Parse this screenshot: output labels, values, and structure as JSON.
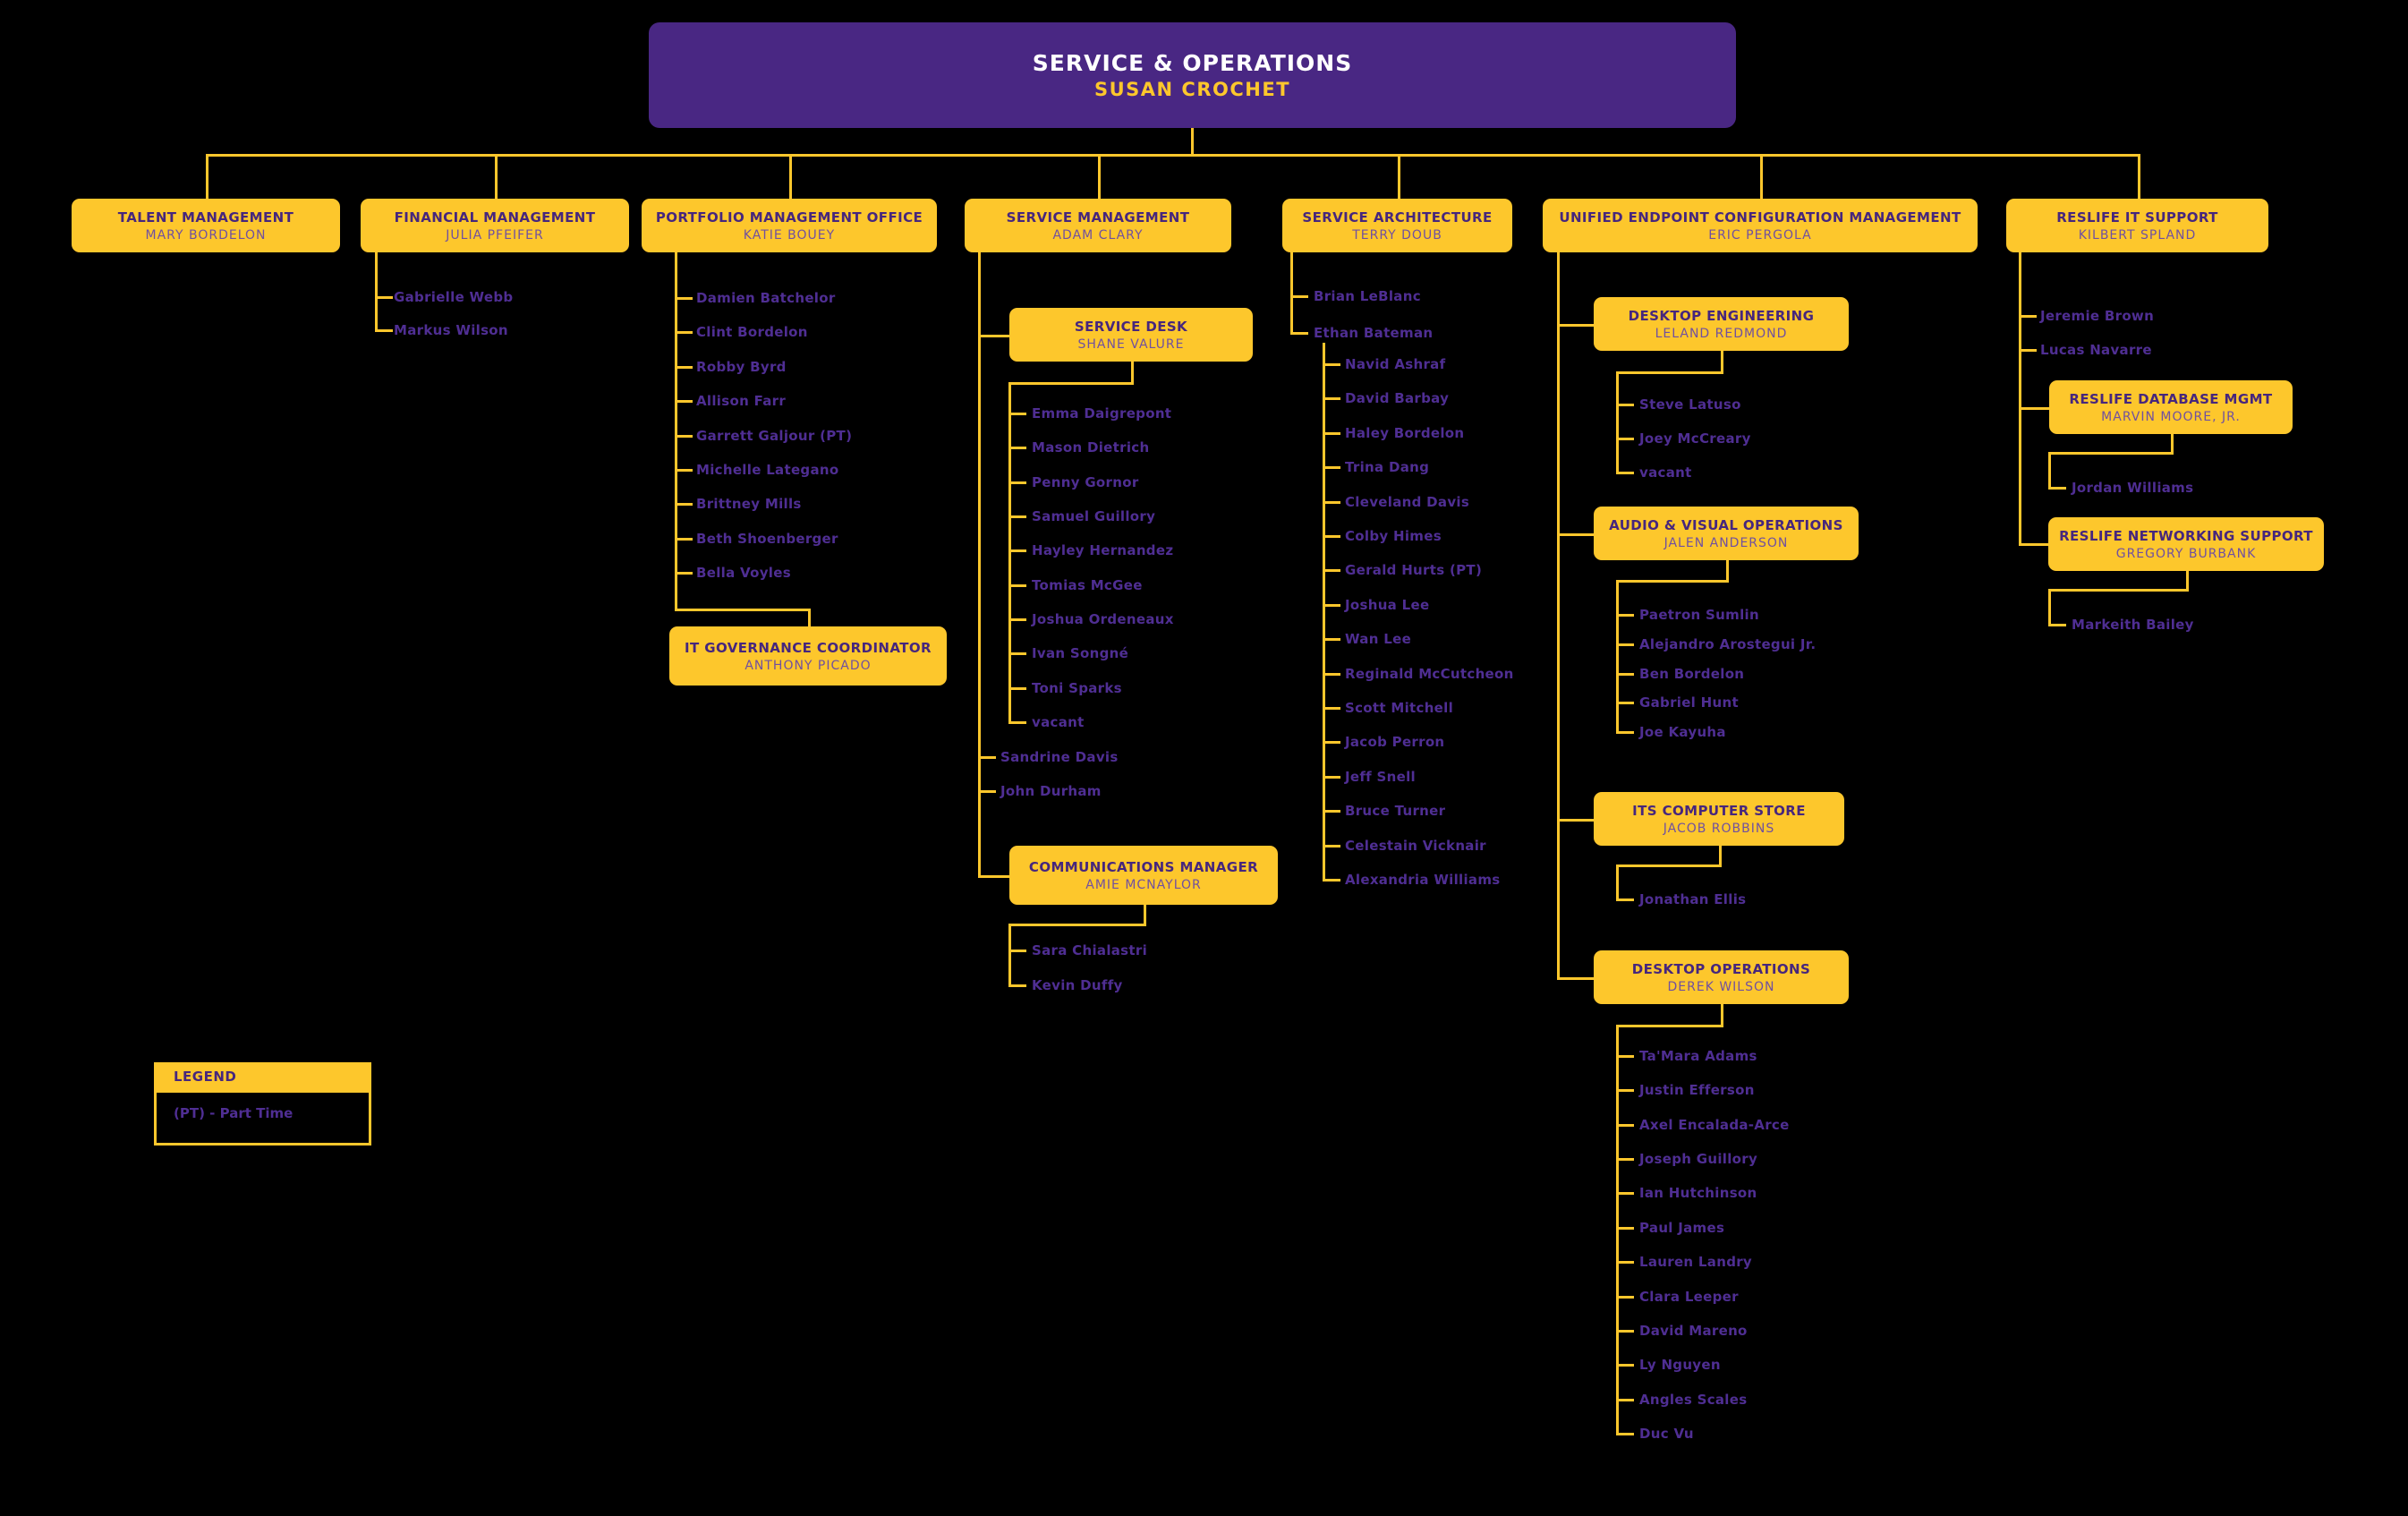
{
  "page_title": "Service & Operations Org Chart",
  "colors": {
    "background": "#000000",
    "gold": "#FDC72C",
    "purple": "#492783",
    "box_title_text": "#46267D",
    "box_name_text": "#7050A0",
    "member_text": "#4F2E93",
    "root_title_text": "#FFFFFF"
  },
  "root": {
    "title": "SERVICE & OPERATIONS",
    "name": "SUSAN CROCHET"
  },
  "branches": [
    {
      "title": "TALENT MANAGEMENT",
      "name": "MARY BORDELON",
      "members": [],
      "subunits": []
    },
    {
      "title": "FINANCIAL MANAGEMENT",
      "name": "JULIA PFEIFER",
      "members": [
        "Gabrielle Webb",
        "Markus Wilson"
      ],
      "subunits": []
    },
    {
      "title": "PORTFOLIO MANAGEMENT OFFICE",
      "name": "KATIE BOUEY",
      "members": [
        "Damien Batchelor",
        "Clint Bordelon",
        "Robby Byrd",
        "Allison Farr",
        "Garrett Galjour (PT)",
        "Michelle Lategano",
        "Brittney Mills",
        "Beth Shoenberger",
        "Bella Voyles"
      ],
      "subunits": [
        {
          "title": "IT GOVERNANCE COORDINATOR",
          "name": "ANTHONY PICADO",
          "members": []
        }
      ]
    },
    {
      "title": "SERVICE MANAGEMENT",
      "name": "ADAM CLARY",
      "members": [
        "Sandrine Davis",
        "John Durham"
      ],
      "subunits": [
        {
          "title": "SERVICE DESK",
          "name": "SHANE VALURE",
          "members": [
            "Emma Daigrepont",
            "Mason Dietrich",
            "Penny Gornor",
            "Samuel Guillory",
            "Hayley Hernandez",
            "Tomias McGee",
            "Joshua Ordeneaux",
            "Ivan Songné",
            "Toni Sparks",
            "vacant"
          ]
        },
        {
          "title": "COMMUNICATIONS MANAGER",
          "name": "AMIE MCNAYLOR",
          "members": [
            "Sara Chialastri",
            "Kevin Duffy"
          ]
        }
      ]
    },
    {
      "title": "SERVICE ARCHITECTURE",
      "name": "TERRY DOUB",
      "members": [
        "Brian LeBlanc",
        "Ethan Bateman"
      ],
      "sub_members_parent": "Ethan Bateman",
      "sub_members": [
        "Navid Ashraf",
        "David Barbay",
        "Haley Bordelon",
        "Trina Dang",
        "Cleveland Davis",
        "Colby Himes",
        "Gerald Hurts (PT)",
        "Joshua Lee",
        "Wan Lee",
        "Reginald McCutcheon",
        "Scott Mitchell",
        "Jacob Perron",
        "Jeff Snell",
        "Bruce Turner",
        "Celestain Vicknair",
        "Alexandria Williams"
      ],
      "subunits": []
    },
    {
      "title": "UNIFIED ENDPOINT CONFIGURATION MANAGEMENT",
      "name": "ERIC PERGOLA",
      "members": [],
      "subunits": [
        {
          "title": "DESKTOP ENGINEERING",
          "name": "LELAND REDMOND",
          "members": [
            "Steve Latuso",
            "Joey McCreary",
            "vacant"
          ]
        },
        {
          "title": "AUDIO & VISUAL OPERATIONS",
          "name": "JALEN ANDERSON",
          "members": [
            "Paetron Sumlin",
            "Alejandro Arostegui Jr.",
            "Ben Bordelon",
            "Gabriel Hunt",
            "Joe Kayuha"
          ]
        },
        {
          "title": "ITS COMPUTER STORE",
          "name": "JACOB ROBBINS",
          "members": [
            "Jonathan Ellis"
          ]
        },
        {
          "title": "DESKTOP OPERATIONS",
          "name": "DEREK WILSON",
          "members": [
            "Ta'Mara Adams",
            "Justin Efferson",
            "Axel Encalada-Arce",
            "Joseph Guillory",
            "Ian Hutchinson",
            "Paul James",
            "Lauren Landry",
            "Clara Leeper",
            "David Mareno",
            "Ly Nguyen",
            "Angles Scales",
            "Duc Vu"
          ]
        }
      ]
    },
    {
      "title": "RESLIFE IT SUPPORT",
      "name": "KILBERT SPLAND",
      "members": [
        "Jeremie Brown",
        "Lucas Navarre"
      ],
      "subunits": [
        {
          "title": "RESLIFE DATABASE MGMT",
          "name": "MARVIN MOORE, JR.",
          "members": [
            "Jordan Williams"
          ]
        },
        {
          "title": "RESLIFE NETWORKING SUPPORT",
          "name": "GREGORY BURBANK",
          "members": [
            "Markeith Bailey"
          ]
        }
      ]
    }
  ],
  "legend": {
    "header": "LEGEND",
    "items": [
      "(PT) - Part Time"
    ]
  }
}
